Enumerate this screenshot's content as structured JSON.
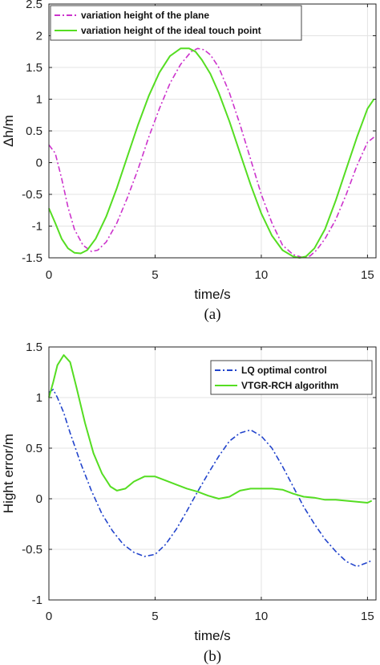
{
  "chart_data": [
    {
      "type": "line",
      "caption": "(a)",
      "xlabel": "time/s",
      "ylabel": "Δh/m",
      "xlim": [
        0,
        15.4
      ],
      "ylim": [
        -1.5,
        2.5
      ],
      "xticks": [
        0,
        5,
        10,
        15
      ],
      "yticks": [
        -1.5,
        -1,
        -0.5,
        0,
        0.5,
        1,
        1.5,
        2,
        2.5
      ],
      "ytick_labels": [
        "-1.5",
        "-1",
        "-0.5",
        "0",
        "0.5",
        "1",
        "1.5",
        "2",
        "2.5"
      ],
      "grid": true,
      "legend_position": "top-left",
      "series": [
        {
          "name": "variation height of the plane",
          "color": "#cc33cc",
          "style": "dashdot",
          "x": [
            0,
            0.3,
            0.6,
            0.9,
            1.2,
            1.6,
            2.0,
            2.3,
            2.7,
            3.2,
            3.7,
            4.2,
            4.7,
            5.2,
            5.7,
            6.2,
            6.7,
            7.0,
            7.3,
            7.6,
            8.0,
            8.5,
            9.0,
            9.5,
            10.0,
            10.5,
            11.0,
            11.5,
            12.0,
            12.3,
            12.6,
            13.0,
            13.5,
            14.0,
            14.5,
            15.0,
            15.3
          ],
          "y": [
            0.28,
            0.15,
            -0.25,
            -0.7,
            -1.05,
            -1.3,
            -1.4,
            -1.38,
            -1.25,
            -0.95,
            -0.55,
            -0.1,
            0.4,
            0.85,
            1.25,
            1.55,
            1.75,
            1.8,
            1.78,
            1.7,
            1.5,
            1.1,
            0.6,
            0.05,
            -0.5,
            -0.95,
            -1.3,
            -1.45,
            -1.5,
            -1.47,
            -1.38,
            -1.2,
            -0.9,
            -0.5,
            -0.05,
            0.32,
            0.4
          ]
        },
        {
          "name": "variation height of the ideal touch point",
          "color": "#55dd22",
          "style": "solid",
          "x": [
            0,
            0.3,
            0.6,
            0.9,
            1.2,
            1.5,
            1.8,
            2.2,
            2.7,
            3.2,
            3.7,
            4.2,
            4.7,
            5.2,
            5.7,
            6.2,
            6.6,
            6.9,
            7.2,
            7.6,
            8.0,
            8.5,
            9.0,
            9.5,
            10.0,
            10.5,
            11.0,
            11.5,
            11.8,
            12.1,
            12.5,
            13.0,
            13.5,
            14.0,
            14.5,
            15.0,
            15.3
          ],
          "y": [
            -0.72,
            -0.95,
            -1.2,
            -1.35,
            -1.42,
            -1.43,
            -1.38,
            -1.2,
            -0.85,
            -0.4,
            0.1,
            0.6,
            1.05,
            1.42,
            1.68,
            1.8,
            1.8,
            1.75,
            1.62,
            1.4,
            1.1,
            0.65,
            0.15,
            -0.35,
            -0.8,
            -1.15,
            -1.38,
            -1.48,
            -1.5,
            -1.48,
            -1.35,
            -1.05,
            -0.6,
            -0.1,
            0.4,
            0.85,
            1.0
          ]
        }
      ]
    },
    {
      "type": "line",
      "caption": "(b)",
      "xlabel": "time/s",
      "ylabel": "Hight error/m",
      "xlim": [
        0,
        15.4
      ],
      "ylim": [
        -1,
        1.5
      ],
      "xticks": [
        0,
        5,
        10,
        15
      ],
      "yticks": [
        -1,
        -0.5,
        0,
        0.5,
        1,
        1.5
      ],
      "ytick_labels": [
        "-1",
        "-0.5",
        "0",
        "0.5",
        "1",
        "1.5"
      ],
      "grid": true,
      "legend_position": "top-right",
      "series": [
        {
          "name": "LQ optimal control",
          "color": "#2244cc",
          "style": "dashdot",
          "x": [
            0,
            0.2,
            0.4,
            0.7,
            1.0,
            1.5,
            2.0,
            2.5,
            3.0,
            3.5,
            4.0,
            4.5,
            5.0,
            5.5,
            6.0,
            6.5,
            7.0,
            7.5,
            8.0,
            8.5,
            9.0,
            9.5,
            10.0,
            10.5,
            11.0,
            11.5,
            12.0,
            12.5,
            13.0,
            13.5,
            14.0,
            14.5,
            15.0,
            15.2
          ],
          "y": [
            1.05,
            1.08,
            1.0,
            0.85,
            0.65,
            0.35,
            0.08,
            -0.15,
            -0.32,
            -0.45,
            -0.53,
            -0.57,
            -0.55,
            -0.45,
            -0.3,
            -0.12,
            0.07,
            0.25,
            0.42,
            0.57,
            0.65,
            0.68,
            0.62,
            0.5,
            0.32,
            0.12,
            -0.08,
            -0.25,
            -0.4,
            -0.52,
            -0.62,
            -0.67,
            -0.63,
            -0.61
          ]
        },
        {
          "name": "VTGR-RCH algorithm",
          "color": "#55dd22",
          "style": "solid",
          "x": [
            0,
            0.2,
            0.4,
            0.7,
            1.0,
            1.3,
            1.7,
            2.1,
            2.5,
            2.9,
            3.2,
            3.6,
            4.0,
            4.5,
            5.0,
            5.5,
            6.0,
            6.5,
            7.0,
            7.5,
            8.0,
            8.5,
            9.0,
            9.5,
            10.0,
            10.5,
            11.0,
            11.5,
            12.0,
            12.5,
            13.0,
            13.5,
            14.0,
            14.5,
            15.0,
            15.2
          ],
          "y": [
            1.0,
            1.15,
            1.32,
            1.42,
            1.35,
            1.1,
            0.75,
            0.45,
            0.25,
            0.12,
            0.08,
            0.1,
            0.17,
            0.22,
            0.22,
            0.18,
            0.14,
            0.1,
            0.07,
            0.03,
            0.0,
            0.02,
            0.08,
            0.1,
            0.1,
            0.1,
            0.09,
            0.05,
            0.02,
            0.01,
            -0.01,
            -0.01,
            -0.02,
            -0.03,
            -0.04,
            -0.02
          ]
        }
      ]
    }
  ]
}
